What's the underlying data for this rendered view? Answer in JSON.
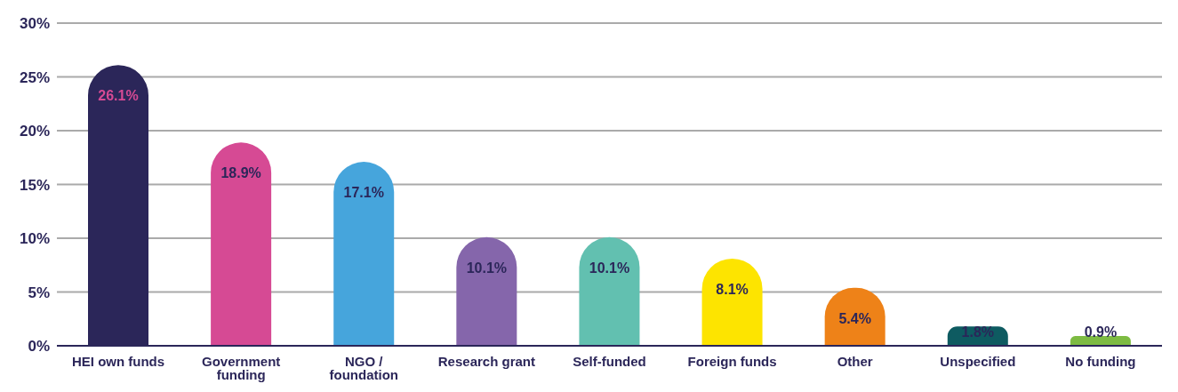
{
  "chart_data": {
    "type": "bar",
    "categories": [
      "HEI own funds",
      "Government funding",
      "NGO / foundation",
      "Research grant",
      "Self-funded",
      "Foreign funds",
      "Other",
      "Unspecified",
      "No funding"
    ],
    "values": [
      26.1,
      18.9,
      17.1,
      10.1,
      10.1,
      8.1,
      5.4,
      1.8,
      0.9
    ],
    "colors": [
      "#2b2659",
      "#d64a94",
      "#46a5dc",
      "#8566ab",
      "#62c0b0",
      "#fde400",
      "#ee8218",
      "#0e5b61",
      "#7dbb42"
    ],
    "value_labels": [
      "26.1%",
      "18.9%",
      "17.1%",
      "10.1%",
      "10.1%",
      "8.1%",
      "5.4%",
      "1.8%",
      "0.9%"
    ],
    "ylim": [
      0,
      30
    ],
    "yticks": [
      {
        "value": 0,
        "label": "0%"
      },
      {
        "value": 5,
        "label": "5%"
      },
      {
        "value": 10,
        "label": "10%"
      },
      {
        "value": 15,
        "label": "15%"
      },
      {
        "value": 20,
        "label": "20%"
      },
      {
        "value": 25,
        "label": "25%"
      },
      {
        "value": 30,
        "label": "30%"
      }
    ],
    "grid": "y"
  }
}
